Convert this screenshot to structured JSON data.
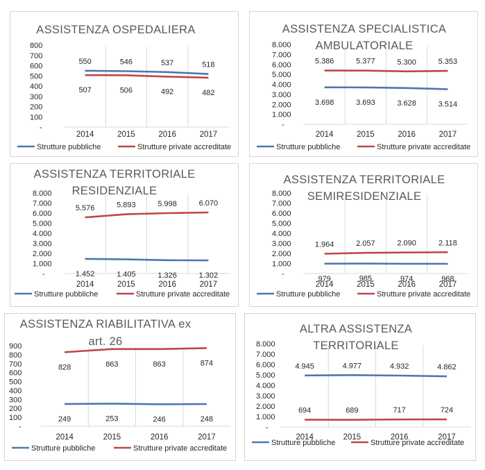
{
  "colors": {
    "pubblico": "#4a78b0",
    "privato": "#bf4745",
    "grid": "#d9d9d9",
    "text": "#262626",
    "title": "#595959"
  },
  "chart_data": [
    {
      "type": "line",
      "title": "ASSISTENZA OSPEDALIERA",
      "title_lines": [
        "ASSISTENZA OSPEDALIERA"
      ],
      "categories": [
        "2014",
        "2015",
        "2016",
        "2017"
      ],
      "yticks": [
        "800",
        "700",
        "600",
        "500",
        "400",
        "300",
        "200",
        "100",
        "-"
      ],
      "ylim": [
        0,
        800
      ],
      "series": [
        {
          "name": "Strutture pubbliche",
          "values": [
            550,
            546,
            537,
            518
          ],
          "labels": [
            "550",
            "546",
            "537",
            "518"
          ],
          "label_pos": "above"
        },
        {
          "name": "Strutture private accreditate",
          "values": [
            507,
            506,
            492,
            482
          ],
          "labels": [
            "507",
            "506",
            "492",
            "482"
          ],
          "label_pos": "below"
        }
      ]
    },
    {
      "type": "line",
      "title": "ASSISTENZA SPECIALISTICA AMBULATORIALE",
      "title_lines": [
        "ASSISTENZA SPECIALISTICA",
        "AMBULATORIALE"
      ],
      "categories": [
        "2014",
        "2015",
        "2016",
        "2017"
      ],
      "yticks": [
        "8.000",
        "7.000",
        "6.000",
        "5.000",
        "4.000",
        "3.000",
        "2.000",
        "1.000",
        "-"
      ],
      "ylim": [
        0,
        8000
      ],
      "series": [
        {
          "name": "Strutture pubbliche",
          "values": [
            3698,
            3693,
            3628,
            3514
          ],
          "labels": [
            "3.698",
            "3.693",
            "3.628",
            "3.514"
          ],
          "label_pos": "below"
        },
        {
          "name": "Strutture private accreditate",
          "values": [
            5386,
            5377,
            5300,
            5353
          ],
          "labels": [
            "5.386",
            "5.377",
            "5.300",
            "5.353"
          ],
          "label_pos": "above"
        }
      ]
    },
    {
      "type": "line",
      "title": "ASSISTENZA TERRITORIALE RESIDENZIALE",
      "title_lines": [
        "ASSISTENZA TERRITORIALE",
        "RESIDENZIALE"
      ],
      "categories": [
        "2014",
        "2015",
        "2016",
        "2017"
      ],
      "yticks": [
        "8.000",
        "7.000",
        "6.000",
        "5.000",
        "4.000",
        "3.000",
        "2.000",
        "1.000",
        "-"
      ],
      "ylim": [
        0,
        8000
      ],
      "series": [
        {
          "name": "Strutture pubbliche",
          "values": [
            1452,
            1405,
            1326,
            1302
          ],
          "labels": [
            "1.452",
            "1.405",
            "1.326",
            "1.302"
          ],
          "label_pos": "below"
        },
        {
          "name": "Strutture private accreditate",
          "values": [
            5576,
            5893,
            5998,
            6070
          ],
          "labels": [
            "5.576",
            "5.893",
            "5.998",
            "6.070"
          ],
          "label_pos": "above"
        }
      ]
    },
    {
      "type": "line",
      "title": "ASSISTENZA TERRITORIALE SEMIRESIDENZIALE",
      "title_lines": [
        "ASSISTENZA TERRITORIALE",
        "SEMIRESIDENZIALE"
      ],
      "categories": [
        "2014",
        "2015",
        "2016",
        "2017"
      ],
      "yticks": [
        "8.000",
        "7.000",
        "6.000",
        "5.000",
        "4.000",
        "3.000",
        "2.000",
        "1.000",
        "-"
      ],
      "ylim": [
        0,
        8000
      ],
      "series": [
        {
          "name": "Strutture pubbliche",
          "values": [
            979,
            985,
            974,
            968
          ],
          "labels": [
            "979",
            "985",
            "974",
            "968"
          ],
          "label_pos": "below"
        },
        {
          "name": "Strutture private accreditate",
          "values": [
            1964,
            2057,
            2090,
            2118
          ],
          "labels": [
            "1.964",
            "2.057",
            "2.090",
            "2.118"
          ],
          "label_pos": "above"
        }
      ]
    },
    {
      "type": "line",
      "title": "ASSISTENZA RIABILITATIVA ex art. 26",
      "title_lines": [
        "ASSISTENZA RIABILITATIVA ex",
        "art. 26"
      ],
      "categories": [
        "2014",
        "2015",
        "2016",
        "2017"
      ],
      "yticks": [
        "900",
        "800",
        "700",
        "600",
        "500",
        "400",
        "300",
        "200",
        "100",
        "-"
      ],
      "ylim": [
        0,
        900
      ],
      "series": [
        {
          "name": "Strutture pubbliche",
          "values": [
            249,
            253,
            246,
            248
          ],
          "labels": [
            "249",
            "253",
            "246",
            "248"
          ],
          "label_pos": "below"
        },
        {
          "name": "Strutture private accreditate",
          "values": [
            828,
            863,
            863,
            874
          ],
          "labels": [
            "828",
            "863",
            "863",
            "874"
          ],
          "label_pos": "below"
        }
      ]
    },
    {
      "type": "line",
      "title": "ALTRA ASSISTENZA TERRITORIALE",
      "title_lines": [
        "ALTRA ASSISTENZA",
        "TERRITORIALE"
      ],
      "categories": [
        "2014",
        "2015",
        "2016",
        "2017"
      ],
      "yticks": [
        "8.000",
        "7.000",
        "6.000",
        "5.000",
        "4.000",
        "3.000",
        "2.000",
        "1.000",
        "-"
      ],
      "ylim": [
        0,
        8000
      ],
      "series": [
        {
          "name": "Strutture pubbliche",
          "values": [
            4945,
            4977,
            4932,
            4862
          ],
          "labels": [
            "4.945",
            "4.977",
            "4.932",
            "4.862"
          ],
          "label_pos": "above"
        },
        {
          "name": "Strutture private accreditate",
          "values": [
            694,
            689,
            717,
            724
          ],
          "labels": [
            "694",
            "689",
            "717",
            "724"
          ],
          "label_pos": "above"
        }
      ]
    }
  ]
}
